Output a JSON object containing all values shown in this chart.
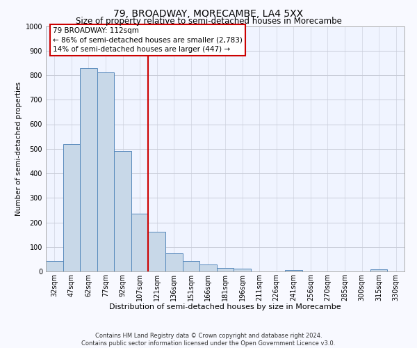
{
  "title": "79, BROADWAY, MORECAMBE, LA4 5XX",
  "subtitle": "Size of property relative to semi-detached houses in Morecambe",
  "xlabel": "Distribution of semi-detached houses by size in Morecambe",
  "ylabel": "Number of semi-detached properties",
  "bar_labels": [
    "32sqm",
    "47sqm",
    "62sqm",
    "77sqm",
    "92sqm",
    "107sqm",
    "121sqm",
    "136sqm",
    "151sqm",
    "166sqm",
    "181sqm",
    "196sqm",
    "211sqm",
    "226sqm",
    "241sqm",
    "256sqm",
    "270sqm",
    "285sqm",
    "300sqm",
    "315sqm",
    "330sqm"
  ],
  "bar_values": [
    42,
    520,
    828,
    810,
    492,
    235,
    162,
    75,
    42,
    27,
    13,
    10,
    0,
    0,
    7,
    0,
    0,
    0,
    0,
    8,
    0
  ],
  "bar_color": "#c8d8e8",
  "bar_edge_color": "#5588bb",
  "vline_x_index": 5,
  "vline_color": "#cc0000",
  "ylim": [
    0,
    1000
  ],
  "annotation_line1": "79 BROADWAY: 112sqm",
  "annotation_line2": "← 86% of semi-detached houses are smaller (2,783)",
  "annotation_line3": "14% of semi-detached houses are larger (447) →",
  "footer_text": "Contains HM Land Registry data © Crown copyright and database right 2024.\nContains public sector information licensed under the Open Government Licence v3.0.",
  "background_color": "#f8f9ff",
  "plot_bg_color": "#f0f4ff",
  "grid_color": "#c8ccd8",
  "title_fontsize": 10,
  "subtitle_fontsize": 8.5,
  "xlabel_fontsize": 8,
  "ylabel_fontsize": 7.5,
  "tick_fontsize": 7,
  "annot_fontsize": 7.5,
  "footer_fontsize": 6
}
